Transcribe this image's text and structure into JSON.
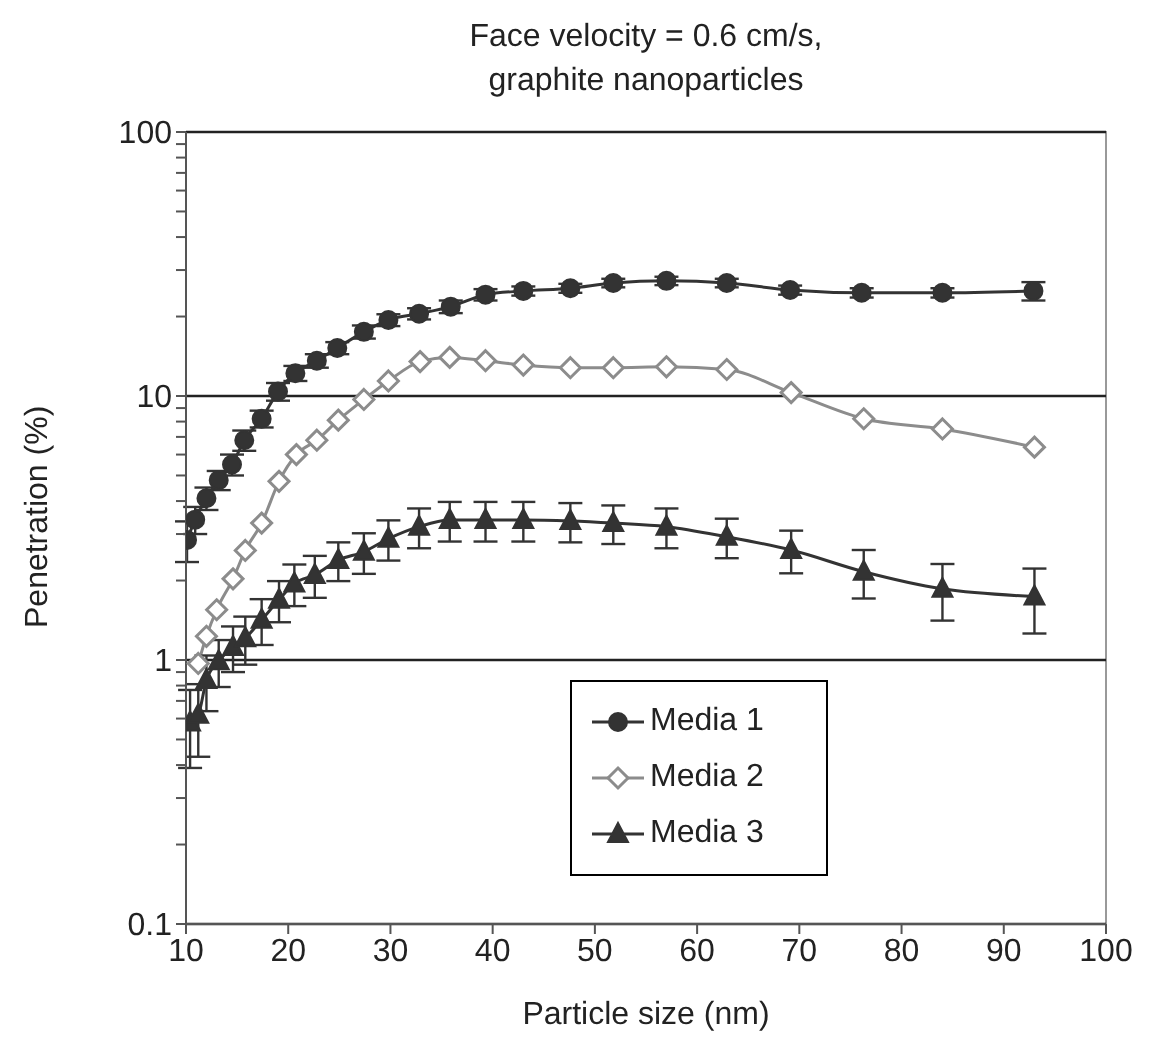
{
  "chart_data": {
    "type": "line",
    "title": "Face velocity = 0.6 cm/s,\ngraphite nanoparticles",
    "xlabel": "Particle size (nm)",
    "ylabel": "Penetration (%)",
    "log": "y",
    "grid": "y",
    "legend": "bottom",
    "line_style": "solid",
    "xlim": [
      10,
      100
    ],
    "xticks": [
      10,
      20,
      30,
      40,
      50,
      60,
      70,
      80,
      90,
      100
    ],
    "ylim": [
      0.1,
      100
    ],
    "yticks": [
      0.1,
      {
        "value": 0.2,
        "label": null
      },
      {
        "value": 0.3,
        "label": null
      },
      {
        "value": 0.4,
        "label": null
      },
      {
        "value": 0.5,
        "label": null
      },
      {
        "value": 0.6,
        "label": null
      },
      {
        "value": 0.7,
        "label": null
      },
      {
        "value": 0.8,
        "label": null
      },
      {
        "value": 0.9,
        "label": null
      },
      1,
      {
        "value": 2,
        "label": null
      },
      {
        "value": 3,
        "label": null
      },
      {
        "value": 4,
        "label": null
      },
      {
        "value": 5,
        "label": null
      },
      {
        "value": 6,
        "label": null
      },
      {
        "value": 7,
        "label": null
      },
      {
        "value": 8,
        "label": null
      },
      {
        "value": 9,
        "label": null
      },
      10,
      {
        "value": 20,
        "label": null
      },
      {
        "value": 30,
        "label": null
      },
      {
        "value": 40,
        "label": null
      },
      {
        "value": 50,
        "label": null
      },
      {
        "value": 60,
        "label": null
      },
      {
        "value": 70,
        "label": null
      },
      {
        "value": 80,
        "label": null
      },
      {
        "value": 90,
        "label": null
      },
      100
    ],
    "series": [
      {
        "name": "Media 1",
        "color": "#333333",
        "marker": "circle",
        "x": [
          10.1,
          10.9,
          12.0,
          13.2,
          14.5,
          15.7,
          17.4,
          19.0,
          20.7,
          22.8,
          24.8,
          27.4,
          29.8,
          32.8,
          35.9,
          39.3,
          43.0,
          47.6,
          51.8,
          57.0,
          62.9,
          69.1,
          76.1,
          84.0,
          92.9
        ],
        "values": [
          2.85,
          3.4,
          4.1,
          4.8,
          5.5,
          6.8,
          8.2,
          10.4,
          12.2,
          13.6,
          15.2,
          17.5,
          19.4,
          20.5,
          21.8,
          24.2,
          25,
          25.6,
          26.8,
          27.3,
          26.8,
          25.2,
          24.6,
          24.6,
          25
        ],
        "errors": [
          0.5,
          0.4,
          0.4,
          0.4,
          0.5,
          0.6,
          0.6,
          0.8,
          0.8,
          0.8,
          0.8,
          1,
          1,
          1,
          1.2,
          1.2,
          1,
          1,
          1,
          1,
          1,
          1,
          1,
          1,
          2
        ]
      },
      {
        "name": "Media 2",
        "color": "#8c8c8c",
        "marker": "diamond",
        "x": [
          11.2,
          12.0,
          13.0,
          14.6,
          15.8,
          17.4,
          19.1,
          20.8,
          22.8,
          24.9,
          27.4,
          29.8,
          32.9,
          35.8,
          39.3,
          43.0,
          47.6,
          51.8,
          57.0,
          62.9,
          69.2,
          76.3,
          84.0,
          93.0
        ],
        "values": [
          0.97,
          1.23,
          1.55,
          2.03,
          2.6,
          3.3,
          4.75,
          6.0,
          6.8,
          8.1,
          9.7,
          11.4,
          13.5,
          14.0,
          13.6,
          13.1,
          12.8,
          12.8,
          12.9,
          12.6,
          10.3,
          8.2,
          7.5,
          6.4
        ]
      },
      {
        "name": "Media 3",
        "color": "#333333",
        "marker": "triangle",
        "x": [
          10.4,
          11.2,
          12.0,
          13.2,
          14.6,
          15.8,
          17.4,
          19.1,
          20.6,
          22.6,
          24.9,
          27.4,
          29.8,
          32.8,
          35.8,
          39.3,
          43.0,
          47.6,
          51.8,
          57.0,
          62.9,
          69.2,
          76.3,
          84.0,
          93.0
        ],
        "values": [
          0.58,
          0.62,
          0.84,
          0.99,
          1.12,
          1.21,
          1.42,
          1.69,
          1.95,
          2.1,
          2.39,
          2.57,
          2.88,
          3.2,
          3.39,
          3.39,
          3.39,
          3.36,
          3.3,
          3.2,
          2.93,
          2.61,
          2.16,
          1.86,
          1.74
        ],
        "errors": [
          0.19,
          0.19,
          0.2,
          0.2,
          0.22,
          0.25,
          0.28,
          0.3,
          0.35,
          0.38,
          0.4,
          0.45,
          0.5,
          0.55,
          0.58,
          0.58,
          0.58,
          0.57,
          0.55,
          0.55,
          0.5,
          0.48,
          0.45,
          0.45,
          0.48
        ]
      }
    ]
  }
}
